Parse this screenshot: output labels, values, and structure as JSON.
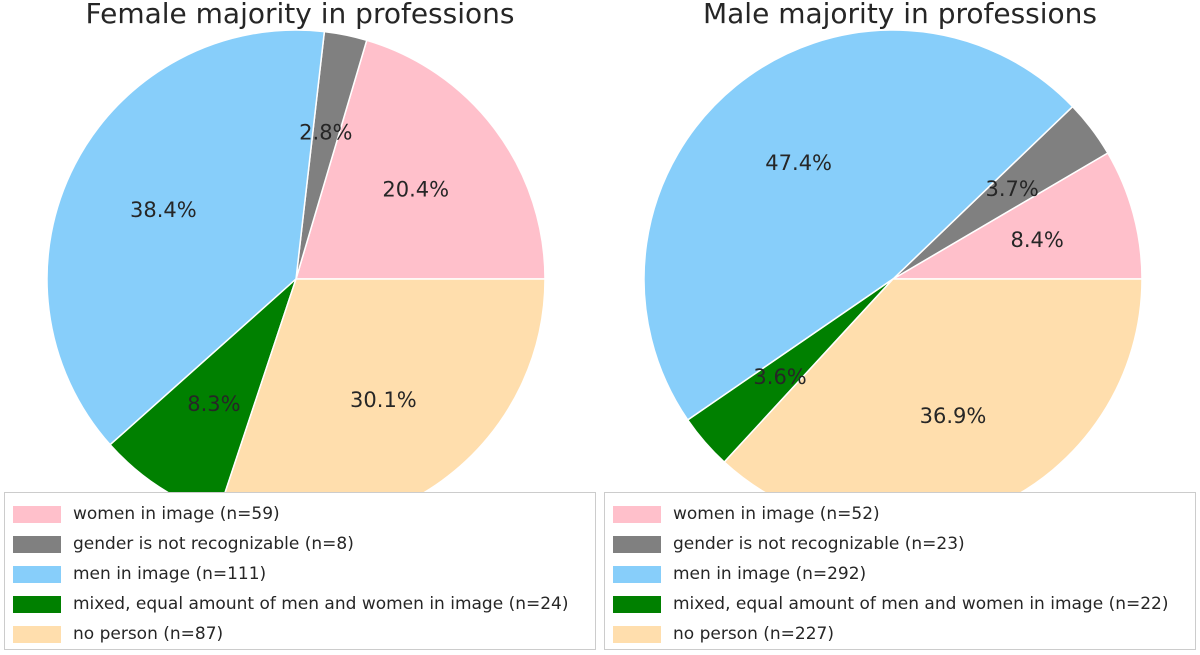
{
  "colors": {
    "women": "#ffc0cb",
    "unknown": "#808080",
    "men": "#87cefa",
    "mixed": "#008000",
    "none": "#ffdead"
  },
  "chart_data": [
    {
      "type": "pie",
      "title": "Female majority in professions",
      "start_angle_deg": 0,
      "direction": "counterclockwise",
      "legend_position": "bottom",
      "slices": [
        {
          "label": "women in image (n=59)",
          "value": 59,
          "percent_label": "20.4%",
          "color_key": "women"
        },
        {
          "label": "gender is not recognizable (n=8)",
          "value": 8,
          "percent_label": "2.8%",
          "color_key": "unknown"
        },
        {
          "label": "men in image (n=111)",
          "value": 111,
          "percent_label": "38.4%",
          "color_key": "men"
        },
        {
          "label": "mixed, equal amount of men and women in image (n=24)",
          "value": 24,
          "percent_label": "8.3%",
          "color_key": "mixed"
        },
        {
          "label": "no person (n=87)",
          "value": 87,
          "percent_label": "30.1%",
          "color_key": "none"
        }
      ]
    },
    {
      "type": "pie",
      "title": "Male majority in professions",
      "start_angle_deg": 0,
      "direction": "counterclockwise",
      "legend_position": "bottom",
      "slices": [
        {
          "label": "women in image (n=52)",
          "value": 52,
          "percent_label": "8.4%",
          "color_key": "women"
        },
        {
          "label": "gender is not recognizable (n=23)",
          "value": 23,
          "percent_label": "3.7%",
          "color_key": "unknown"
        },
        {
          "label": "men in image (n=292)",
          "value": 292,
          "percent_label": "47.4%",
          "color_key": "men"
        },
        {
          "label": "mixed, equal amount of men and women in image (n=22)",
          "value": 22,
          "percent_label": "3.6%",
          "color_key": "mixed"
        },
        {
          "label": "no person (n=227)",
          "value": 227,
          "percent_label": "36.9%",
          "color_key": "none"
        }
      ]
    }
  ]
}
